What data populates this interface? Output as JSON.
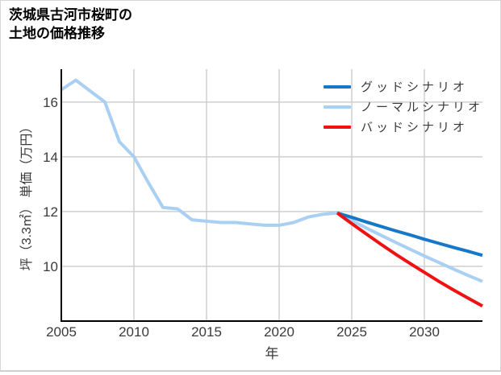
{
  "page": {
    "background": "#ffffff",
    "border_color": "#d6d6d6"
  },
  "title": {
    "line1": "茨城県古河市桜町の",
    "line2": "土地の価格推移"
  },
  "chart_data": {
    "type": "line",
    "title": "茨城県古河市桜町の土地の価格推移",
    "xlabel": "年",
    "ylabel": "坪（3.3㎡） 単価（万円）",
    "xlim": [
      2005,
      2034
    ],
    "ylim": [
      8,
      17.2
    ],
    "x_ticks": [
      2005,
      2010,
      2015,
      2020,
      2025,
      2030
    ],
    "y_ticks": [
      10,
      12,
      14,
      16
    ],
    "grid": true,
    "legend_position": "top-right-inside",
    "colors": {
      "grid": "#cfcfcf",
      "axis": "#000000",
      "tick_text": "#3a3a3a"
    },
    "series": [
      {
        "name": "グッドシナリオ",
        "color": "#1878c8",
        "z": 2,
        "x": [
          2024,
          2025,
          2026,
          2027,
          2028,
          2029,
          2030,
          2031,
          2032,
          2033,
          2034
        ],
        "values": [
          11.95,
          11.79,
          11.62,
          11.46,
          11.3,
          11.15,
          10.99,
          10.84,
          10.69,
          10.55,
          10.4
        ]
      },
      {
        "name": "ノーマルシナリオ",
        "color": "#a9cff2",
        "z": 1,
        "x": [
          2005,
          2006,
          2007,
          2008,
          2009,
          2010,
          2011,
          2012,
          2013,
          2014,
          2015,
          2016,
          2017,
          2018,
          2019,
          2020,
          2021,
          2022,
          2023,
          2024,
          2025,
          2026,
          2027,
          2028,
          2029,
          2030,
          2031,
          2032,
          2033,
          2034
        ],
        "values": [
          16.45,
          16.8,
          16.4,
          16.0,
          14.55,
          14.0,
          13.05,
          12.15,
          12.1,
          11.7,
          11.65,
          11.6,
          11.6,
          11.55,
          11.5,
          11.5,
          11.6,
          11.8,
          11.9,
          11.95,
          11.67,
          11.4,
          11.14,
          10.88,
          10.63,
          10.38,
          10.14,
          9.9,
          9.67,
          9.45
        ]
      },
      {
        "name": "バッドシナリオ",
        "color": "#f01212",
        "z": 3,
        "x": [
          2024,
          2025,
          2026,
          2027,
          2028,
          2029,
          2030,
          2031,
          2032,
          2033,
          2034
        ],
        "values": [
          11.95,
          11.56,
          11.18,
          10.81,
          10.45,
          10.11,
          9.78,
          9.45,
          9.14,
          8.84,
          8.55
        ]
      }
    ]
  }
}
